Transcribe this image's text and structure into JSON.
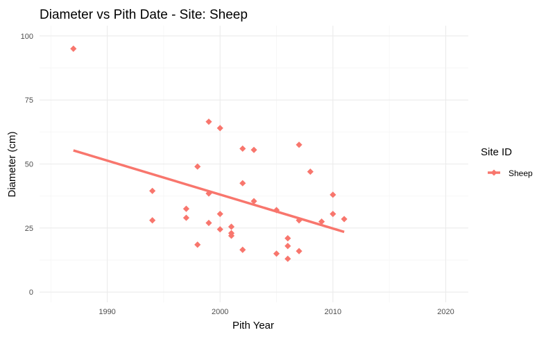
{
  "chart_data": {
    "type": "scatter",
    "title": "Diameter vs Pith Date - Site: Sheep",
    "xlabel": "Pith Year",
    "ylabel": "Diameter (cm)",
    "xlim": [
      1984,
      2022
    ],
    "ylim": [
      -4,
      104
    ],
    "x_ticks": [
      1990,
      2000,
      2010,
      2020
    ],
    "y_ticks": [
      0,
      25,
      50,
      75,
      100
    ],
    "x_minor_ticks": [
      1985,
      1995,
      2005,
      2015
    ],
    "y_minor_ticks": [
      12.5,
      37.5,
      62.5,
      87.5
    ],
    "grid": true,
    "legend": {
      "title": "Site ID",
      "position": "right",
      "entries": [
        "Sheep"
      ]
    },
    "series": [
      {
        "name": "Sheep",
        "color": "#F8766D",
        "marker": "diamond",
        "points": [
          {
            "x": 1987,
            "y": 95
          },
          {
            "x": 1994,
            "y": 39.5
          },
          {
            "x": 1994,
            "y": 28
          },
          {
            "x": 1997,
            "y": 32.5
          },
          {
            "x": 1997,
            "y": 29
          },
          {
            "x": 1998,
            "y": 49
          },
          {
            "x": 1998,
            "y": 18.5
          },
          {
            "x": 1999,
            "y": 66.5
          },
          {
            "x": 1999,
            "y": 38.5
          },
          {
            "x": 1999,
            "y": 27
          },
          {
            "x": 2000,
            "y": 64
          },
          {
            "x": 2000,
            "y": 30.5
          },
          {
            "x": 2000,
            "y": 24.5
          },
          {
            "x": 2001,
            "y": 25.5
          },
          {
            "x": 2001,
            "y": 23
          },
          {
            "x": 2001,
            "y": 22
          },
          {
            "x": 2002,
            "y": 56
          },
          {
            "x": 2002,
            "y": 42.5
          },
          {
            "x": 2002,
            "y": 16.5
          },
          {
            "x": 2003,
            "y": 55.5
          },
          {
            "x": 2003,
            "y": 35.5
          },
          {
            "x": 2005,
            "y": 32
          },
          {
            "x": 2005,
            "y": 15
          },
          {
            "x": 2006,
            "y": 21
          },
          {
            "x": 2006,
            "y": 18
          },
          {
            "x": 2006,
            "y": 13
          },
          {
            "x": 2007,
            "y": 57.5
          },
          {
            "x": 2007,
            "y": 28
          },
          {
            "x": 2007,
            "y": 16
          },
          {
            "x": 2008,
            "y": 47
          },
          {
            "x": 2009,
            "y": 27.5
          },
          {
            "x": 2010,
            "y": 38
          },
          {
            "x": 2010,
            "y": 30.5
          },
          {
            "x": 2011,
            "y": 28.5
          }
        ],
        "trend_line": {
          "x": [
            1987,
            2011
          ],
          "y": [
            55.3,
            23.5
          ]
        }
      }
    ]
  }
}
